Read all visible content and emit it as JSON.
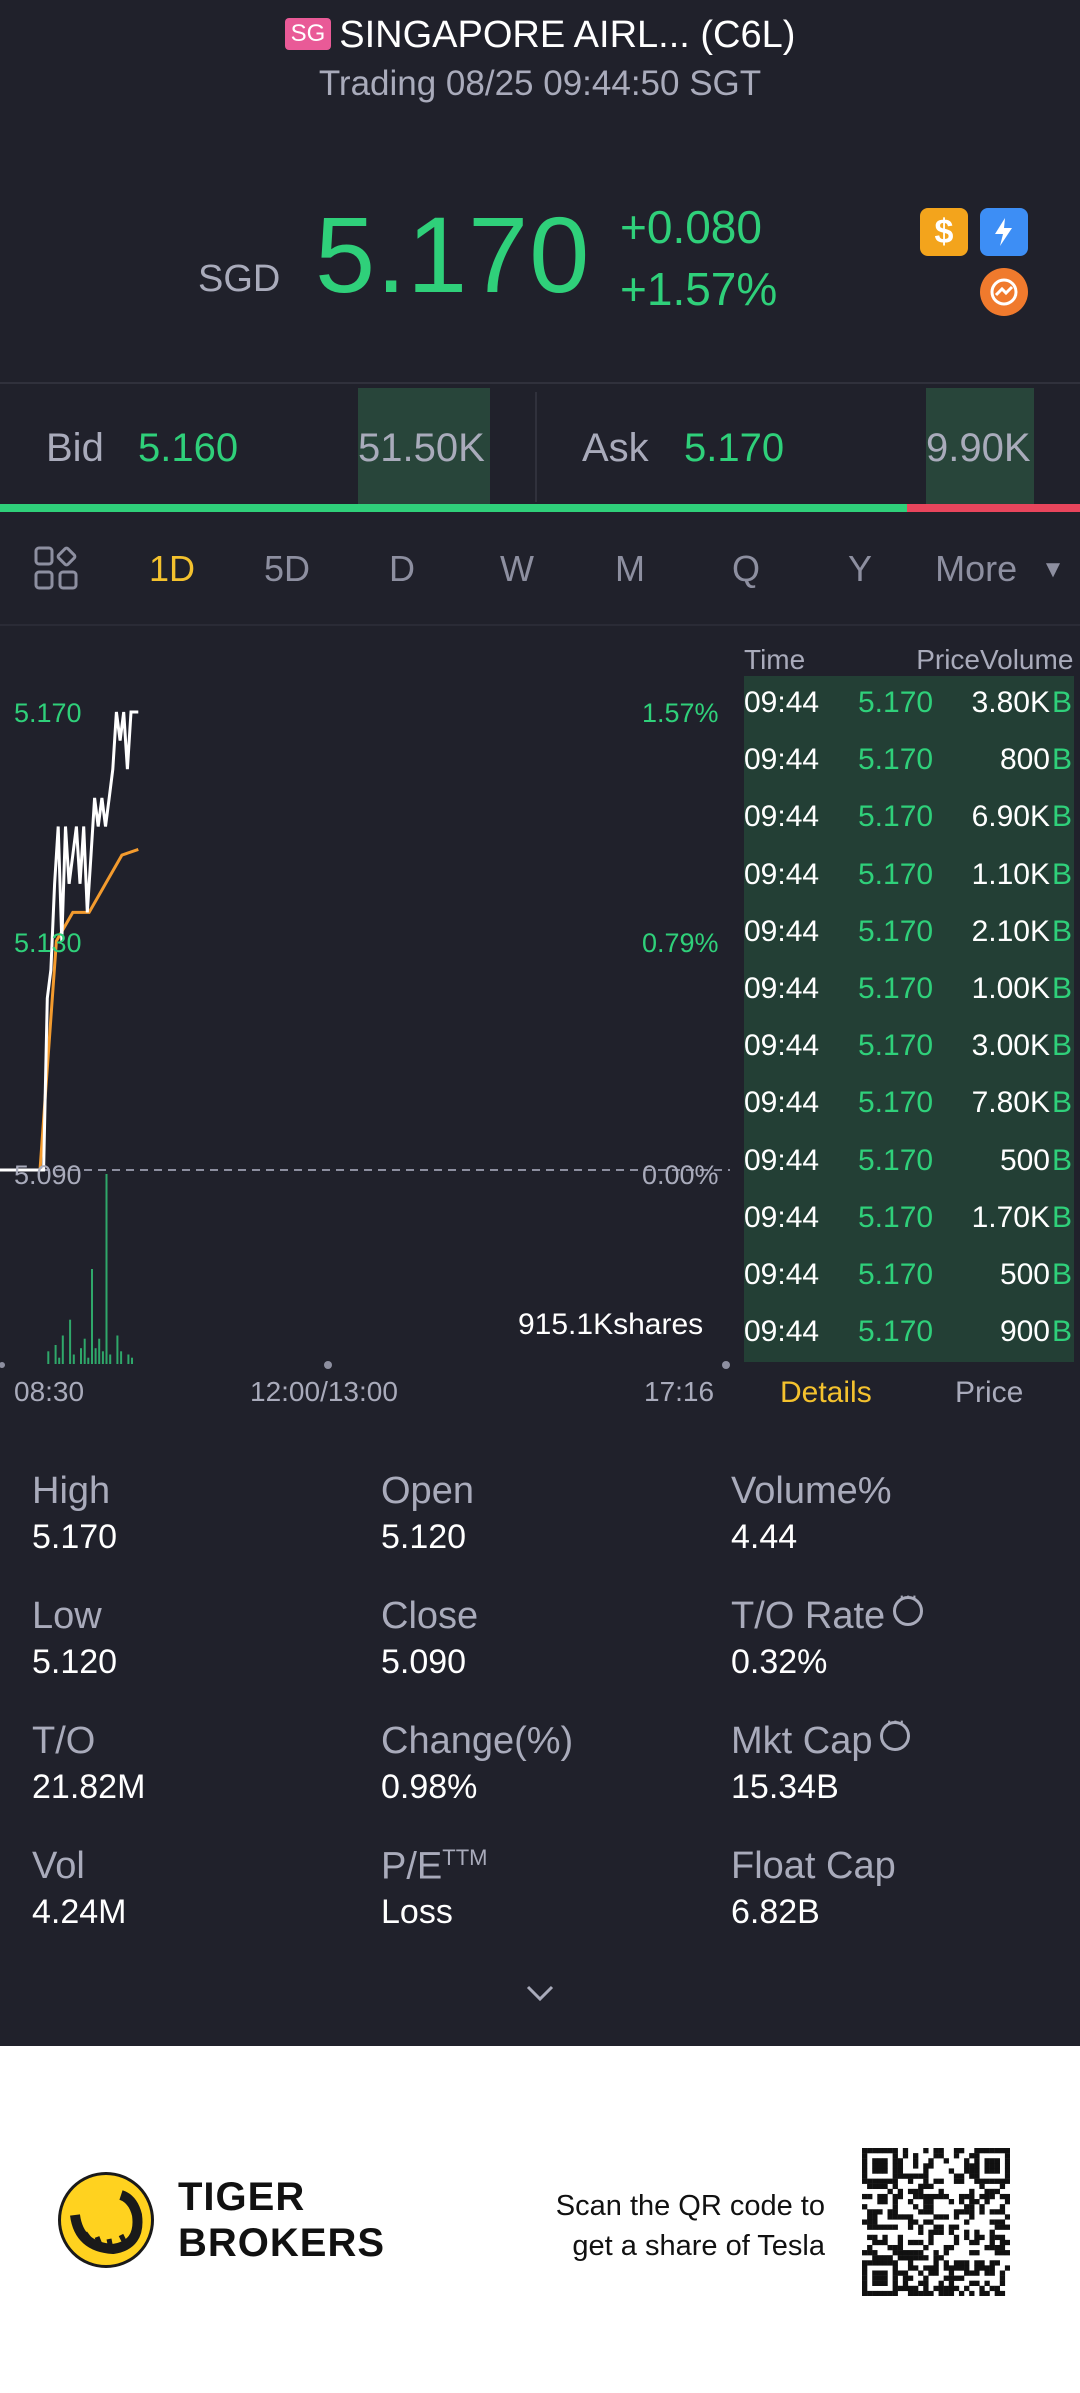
{
  "header": {
    "market_tag": "SG",
    "title": "SINGAPORE AIRL... (C6L)",
    "status": "Trading 08/25 09:44:50 SGT",
    "currency": "SGD",
    "price": "5.170",
    "change": "+0.080",
    "change_pct": "+1.57%",
    "icons": [
      "dollar-badge-icon",
      "flash-badge-icon",
      "orange-badge-icon"
    ]
  },
  "bidask": {
    "bid_label": "Bid",
    "bid_price": "5.160",
    "bid_volume": "51.50K",
    "ask_label": "Ask",
    "ask_price": "5.170",
    "ask_volume": "9.90K",
    "bid_ratio": 0.84
  },
  "tabs": [
    "1D",
    "5D",
    "D",
    "W",
    "M",
    "Q",
    "Y",
    "More"
  ],
  "active_tab": "1D",
  "chart": {
    "y_left": [
      "5.170",
      "5.130",
      "5.090"
    ],
    "y_right": [
      "1.57%",
      "0.79%",
      "0.00%"
    ],
    "volume_text": "915.1Kshares",
    "x_labels": [
      "08:30",
      "12:00/13:00",
      "17:16"
    ],
    "colors": {
      "price_line": "#ffffff",
      "avg_line": "#f39b2e",
      "volume": "#2fa86a"
    }
  },
  "chart_data": {
    "type": "line",
    "title": "",
    "series": [
      {
        "name": "",
        "x": [
          "08:30",
          "08:31",
          "08:32",
          "08:33",
          "08:34",
          "08:35",
          "08:36",
          "08:37",
          "08:38",
          "08:39",
          "08:40",
          "08:41",
          "08:42",
          "08:43",
          "08:44",
          "08:45",
          "08:46",
          "08:47",
          "08:48",
          "08:49",
          "08:50",
          "08:51",
          "08:52",
          "08:53",
          "08:54",
          "08:55",
          "08:56",
          "08:57"
        ],
        "values": [
          5.09,
          5.09,
          5.12,
          5.125,
          5.14,
          5.15,
          5.13,
          5.15,
          5.14,
          5.145,
          5.15,
          5.14,
          5.15,
          5.135,
          5.145,
          5.155,
          5.15,
          5.155,
          5.15,
          5.155,
          5.16,
          5.17,
          5.165,
          5.17,
          5.16,
          5.17,
          5.17,
          5.17
        ]
      },
      {
        "name": "",
        "x": [
          "08:30",
          "08:35",
          "08:40",
          "08:45",
          "08:50",
          "08:55",
          "08:57"
        ],
        "values": [
          5.09,
          5.13,
          5.135,
          5.135,
          5.14,
          5.145,
          5.146
        ]
      }
    ],
    "volume": [
      0,
      0,
      4,
      0,
      6,
      2,
      9,
      0,
      14,
      3,
      0,
      5,
      8,
      2,
      30,
      5,
      8,
      4,
      60,
      3,
      0,
      9,
      4,
      0,
      3,
      2,
      0,
      0
    ],
    "ylim": [
      5.09,
      5.17
    ],
    "xlabel": "",
    "ylabel": ""
  },
  "ticks": {
    "headers": [
      "Time",
      "Price",
      "Volume"
    ],
    "rows": [
      {
        "time": "09:44",
        "price": "5.170",
        "volume": "3.80K",
        "dir": "B"
      },
      {
        "time": "09:44",
        "price": "5.170",
        "volume": "800",
        "dir": "B"
      },
      {
        "time": "09:44",
        "price": "5.170",
        "volume": "6.90K",
        "dir": "B"
      },
      {
        "time": "09:44",
        "price": "5.170",
        "volume": "1.10K",
        "dir": "B"
      },
      {
        "time": "09:44",
        "price": "5.170",
        "volume": "2.10K",
        "dir": "B"
      },
      {
        "time": "09:44",
        "price": "5.170",
        "volume": "1.00K",
        "dir": "B"
      },
      {
        "time": "09:44",
        "price": "5.170",
        "volume": "3.00K",
        "dir": "B"
      },
      {
        "time": "09:44",
        "price": "5.170",
        "volume": "7.80K",
        "dir": "B"
      },
      {
        "time": "09:44",
        "price": "5.170",
        "volume": "500",
        "dir": "B"
      },
      {
        "time": "09:44",
        "price": "5.170",
        "volume": "1.70K",
        "dir": "B"
      },
      {
        "time": "09:44",
        "price": "5.170",
        "volume": "500",
        "dir": "B"
      },
      {
        "time": "09:44",
        "price": "5.170",
        "volume": "900",
        "dir": "B"
      }
    ],
    "tab_details": "Details",
    "tab_price": "Price"
  },
  "stats": [
    {
      "label": "High",
      "value": "5.170"
    },
    {
      "label": "Open",
      "value": "5.120"
    },
    {
      "label": "Volume%",
      "value": "4.44"
    },
    {
      "label": "Low",
      "value": "5.120"
    },
    {
      "label": "Close",
      "value": "5.090"
    },
    {
      "label": "T/O Rate",
      "value": "0.32%",
      "info": true
    },
    {
      "label": "T/O",
      "value": "21.82M"
    },
    {
      "label": "Change(%)",
      "value": "0.98%"
    },
    {
      "label": "Mkt Cap",
      "value": "15.34B",
      "info": true
    },
    {
      "label": "Vol",
      "value": "4.24M"
    },
    {
      "label": "P/E",
      "sup": "TTM",
      "value": "Loss"
    },
    {
      "label": "Float Cap",
      "value": "6.82B"
    }
  ],
  "footer": {
    "brand_line1": "TIGER",
    "brand_line2": "BROKERS",
    "qr_line1": "Scan the QR code to",
    "qr_line2": "get a share of Tesla"
  }
}
